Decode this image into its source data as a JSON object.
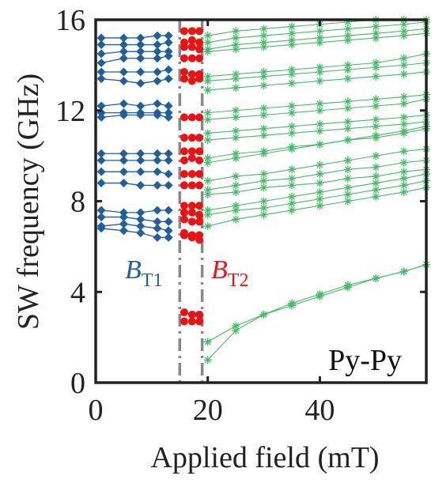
{
  "chart_data": {
    "type": "line",
    "xlabel": "Applied field (mT)",
    "ylabel": "SW frequency (GHz)",
    "xlim": [
      0,
      59
    ],
    "ylim": [
      0,
      16
    ],
    "xticks": [
      0,
      20,
      40
    ],
    "yticks": [
      0,
      4,
      8,
      12,
      16
    ],
    "grid": false,
    "corner_label": "Py-Py",
    "colors": {
      "blue": "#1f5fa0",
      "red": "#ee1111",
      "green": "#44bb66",
      "divider": "#888888",
      "axis": "#222222"
    },
    "annotations": [
      {
        "main": "B",
        "sub": "T1",
        "color": "#1f5fa0"
      },
      {
        "main": "B",
        "sub": "T2",
        "color": "#ee1111"
      }
    ],
    "vlines": [
      15,
      19
    ],
    "series": [
      {
        "marker": "diamond",
        "color": "#1f5fa0",
        "x": [
          1,
          5,
          8,
          11,
          13
        ],
        "modes": [
          [
            15.2,
            15.2,
            15.2,
            15.3,
            15.3
          ],
          [
            14.9,
            14.9,
            14.9,
            14.9,
            15.0
          ],
          [
            14.5,
            14.6,
            14.6,
            14.6,
            14.6
          ],
          [
            14.1,
            14.3,
            14.3,
            14.3,
            14.4
          ],
          [
            13.7,
            13.7,
            13.7,
            13.7,
            13.8
          ],
          [
            13.4,
            13.3,
            13.2,
            13.3,
            13.4
          ],
          [
            12.2,
            12.3,
            12.2,
            12.3,
            12.2
          ],
          [
            11.9,
            11.9,
            11.9,
            11.9,
            11.9
          ],
          [
            11.7,
            11.8,
            11.8,
            11.8,
            11.7
          ],
          [
            10.1,
            10.1,
            10.1,
            10.1,
            10.1
          ],
          [
            9.8,
            9.8,
            9.8,
            9.8,
            9.8
          ],
          [
            9.3,
            9.3,
            9.3,
            9.3,
            9.2
          ],
          [
            8.8,
            8.8,
            8.7,
            8.7,
            8.7
          ],
          [
            7.6,
            7.5,
            7.5,
            7.6,
            7.6
          ],
          [
            7.3,
            7.3,
            7.2,
            7.1,
            7.1
          ],
          [
            6.9,
            7.0,
            6.9,
            6.8,
            6.7
          ],
          [
            6.8,
            6.7,
            6.6,
            6.4,
            6.4
          ]
        ]
      },
      {
        "marker": "circle",
        "color": "#ee1111",
        "x": [
          15.8,
          17.2,
          18.5
        ],
        "modes": [
          [
            15.5,
            15.5,
            15.5
          ],
          [
            15.0,
            15.1,
            15.0
          ],
          [
            14.8,
            14.8,
            14.7
          ],
          [
            14.3,
            14.3,
            14.3
          ],
          [
            13.7,
            13.6,
            13.6
          ],
          [
            13.4,
            13.3,
            13.4
          ],
          [
            11.7,
            11.7,
            11.7
          ],
          [
            10.8,
            10.8,
            10.8
          ],
          [
            10.2,
            10.2,
            10.2
          ],
          [
            9.8,
            9.9,
            9.8
          ],
          [
            9.2,
            9.2,
            9.2
          ],
          [
            8.7,
            8.7,
            8.7
          ],
          [
            7.8,
            7.8,
            7.8
          ],
          [
            7.5,
            7.5,
            7.4
          ],
          [
            7.2,
            7.1,
            7.1
          ],
          [
            6.6,
            6.5,
            6.5
          ],
          [
            6.5,
            6.4,
            6.3
          ],
          [
            3.1,
            3.0,
            3.0
          ],
          [
            2.7,
            2.7,
            2.7
          ]
        ]
      },
      {
        "marker": "star",
        "color": "#44bb66",
        "x": [
          20,
          25,
          30,
          35,
          40,
          45,
          50,
          55,
          59
        ],
        "modes": [
          [
            15.3,
            15.5,
            15.6,
            15.7,
            15.8,
            15.9,
            16.0,
            16.0,
            16.0
          ],
          [
            15.0,
            15.2,
            15.3,
            15.4,
            15.5,
            15.6,
            15.7,
            15.8,
            15.9
          ],
          [
            14.7,
            14.9,
            15.0,
            15.1,
            15.2,
            15.3,
            15.4,
            15.5,
            15.6
          ],
          [
            14.6,
            14.7,
            14.8,
            14.9,
            15.0,
            15.1,
            15.2,
            15.3,
            15.4
          ],
          [
            13.5,
            13.6,
            13.7,
            13.8,
            13.9,
            14.0,
            14.1,
            14.3,
            14.5
          ],
          [
            13.3,
            13.4,
            13.5,
            13.6,
            13.7,
            13.8,
            13.9,
            14.0,
            14.1
          ],
          [
            12.9,
            13.0,
            13.1,
            13.2,
            13.3,
            13.4,
            13.5,
            13.6,
            13.7
          ],
          [
            11.9,
            12.0,
            12.1,
            12.2,
            12.3,
            12.4,
            12.5,
            12.6,
            12.7
          ],
          [
            11.6,
            11.7,
            11.8,
            11.9,
            12.0,
            12.1,
            12.2,
            12.3,
            12.5
          ],
          [
            11.0,
            11.1,
            11.2,
            11.3,
            11.4,
            11.5,
            11.6,
            11.7,
            11.8
          ],
          [
            10.7,
            10.8,
            10.9,
            11.0,
            11.1,
            11.2,
            11.3,
            11.4,
            11.5
          ],
          [
            9.9,
            10.1,
            10.2,
            10.4,
            10.5,
            10.7,
            10.9,
            11.1,
            11.3
          ],
          [
            9.7,
            9.9,
            10.1,
            10.3,
            10.5,
            10.7,
            10.8,
            11.0,
            11.2
          ],
          [
            8.9,
            9.1,
            9.2,
            9.4,
            9.6,
            9.8,
            10.0,
            10.2,
            10.3
          ],
          [
            8.5,
            8.7,
            8.9,
            9.0,
            9.2,
            9.4,
            9.5,
            9.7,
            9.8
          ],
          [
            8.3,
            8.4,
            8.6,
            8.7,
            8.8,
            9.0,
            9.1,
            9.3,
            9.4
          ],
          [
            7.6,
            7.8,
            8.0,
            8.2,
            8.4,
            8.6,
            8.8,
            9.0,
            9.2
          ],
          [
            7.4,
            7.6,
            7.7,
            7.9,
            8.1,
            8.3,
            8.5,
            8.7,
            8.9
          ],
          [
            6.9,
            7.2,
            7.4,
            7.6,
            7.8,
            8.0,
            8.2,
            8.4,
            8.6
          ],
          [
            1.8,
            2.5,
            3.0,
            3.5,
            3.9,
            4.3,
            4.6,
            4.9,
            5.2
          ],
          [
            1.0,
            2.3,
            3.0,
            3.4,
            3.8,
            4.2,
            4.6,
            4.9,
            5.2
          ]
        ]
      }
    ]
  }
}
